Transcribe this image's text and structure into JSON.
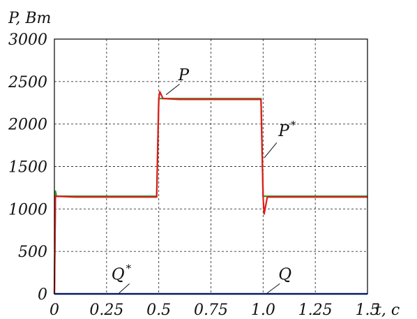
{
  "chart_data": {
    "type": "line",
    "ylabel": "P, Вт",
    "xlabel": "t, c",
    "xlim": [
      0,
      1.5
    ],
    "ylim": [
      0,
      3000
    ],
    "x_ticks": [
      "0",
      "0.25",
      "0.5",
      "0.75",
      "1.0",
      "1.25",
      "1.5"
    ],
    "y_ticks": [
      "0",
      "500",
      "1000",
      "1500",
      "2000",
      "2500",
      "3000"
    ],
    "grid": true,
    "series": [
      {
        "name": "P",
        "color": "#2e9e2e",
        "x": [
          0,
          0.005,
          0.01,
          0.1,
          0.2,
          0.3,
          0.4,
          0.49,
          0.5,
          0.51,
          0.6,
          0.7,
          0.8,
          0.9,
          0.99,
          1.0,
          1.01,
          1.1,
          1.2,
          1.3,
          1.4,
          1.5
        ],
        "y": [
          0,
          1210,
          1150,
          1150,
          1150,
          1150,
          1150,
          1150,
          2300,
          2300,
          2300,
          2300,
          2300,
          2300,
          2300,
          1150,
          1150,
          1150,
          1150,
          1150,
          1150,
          1150
        ]
      },
      {
        "name": "P*",
        "color": "#e01b1b",
        "x": [
          0,
          0.005,
          0.1,
          0.2,
          0.3,
          0.4,
          0.49,
          0.5,
          0.505,
          0.52,
          0.6,
          0.7,
          0.8,
          0.9,
          0.99,
          1.0,
          1.005,
          1.02,
          1.1,
          1.2,
          1.3,
          1.4,
          1.5
        ],
        "y": [
          0,
          1150,
          1140,
          1140,
          1140,
          1140,
          1140,
          2300,
          2380,
          2300,
          2290,
          2290,
          2290,
          2290,
          2290,
          1140,
          940,
          1140,
          1140,
          1140,
          1140,
          1140,
          1140
        ]
      },
      {
        "name": "Q",
        "color": "#e01b1b",
        "x": [
          0,
          1.5
        ],
        "y": [
          0,
          0
        ]
      },
      {
        "name": "Q*",
        "color": "#1a3fd0",
        "x": [
          0,
          1.5
        ],
        "y": [
          0,
          0
        ]
      }
    ],
    "annotations": [
      {
        "text": "P",
        "x": 0.62,
        "y": 2550
      },
      {
        "text": "P",
        "sup": "*",
        "x": 1.1,
        "y": 1890
      },
      {
        "text": "Q",
        "sup": "*",
        "x": 0.3,
        "y": 200
      },
      {
        "text": "Q",
        "x": 1.1,
        "y": 200
      }
    ]
  }
}
